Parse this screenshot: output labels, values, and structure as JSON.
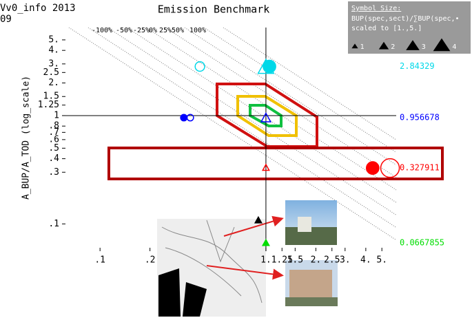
{
  "chart_data": {
    "type": "scatter",
    "title": "Emission Benchmark",
    "corner_text": [
      "Vv0_info 2013",
      "09"
    ],
    "y_label": "A_BUP/A_TOD (log_scale)",
    "x_log": true,
    "y_log": true,
    "xlim": [
      0.059,
      6.1
    ],
    "ylim": [
      0.056,
      6.5
    ],
    "xticks": [
      {
        "value": 0.1,
        "label": ".1"
      },
      {
        "value": 0.2,
        "label": ".2"
      },
      {
        "value": 1,
        "label": "1."
      },
      {
        "value": 1.25,
        "label": "1.25"
      },
      {
        "value": 1.5,
        "label": "1.5"
      },
      {
        "value": 2,
        "label": "2."
      },
      {
        "value": 2.5,
        "label": "2.5"
      },
      {
        "value": 3,
        "label": "3."
      },
      {
        "value": 4,
        "label": "4."
      },
      {
        "value": 5,
        "label": "5."
      }
    ],
    "yticks": [
      {
        "value": 5,
        "label": "5."
      },
      {
        "value": 4,
        "label": "4."
      },
      {
        "value": 3,
        "label": "3."
      },
      {
        "value": 2.5,
        "label": "2.5"
      },
      {
        "value": 2,
        "label": "2."
      },
      {
        "value": 1.5,
        "label": "1.5"
      },
      {
        "value": 1.25,
        "label": "1.25"
      },
      {
        "value": 1,
        "label": "1"
      },
      {
        "value": 0.8,
        "label": ".8"
      },
      {
        "value": 0.7,
        "label": ".7"
      },
      {
        "value": 0.6,
        "label": ".6"
      },
      {
        "value": 0.5,
        "label": ".5"
      },
      {
        "value": 0.4,
        "label": ".4"
      },
      {
        "value": 0.3,
        "label": ".3"
      },
      {
        "value": 0.1,
        "label": ".1"
      }
    ],
    "diagonal_labels": [
      "-100%",
      "-50%",
      "-25%",
      "0%",
      "25%",
      "50%",
      "100%"
    ],
    "reference_values": [
      {
        "value": 2.84329,
        "color": "#00d8e8"
      },
      {
        "value": 0.956678,
        "color": "#0000ff"
      },
      {
        "value": 0.327911,
        "color": "#ff0000"
      },
      {
        "value": 0.0667855,
        "color": "#00dd00"
      }
    ],
    "points": [
      {
        "x": 0.4,
        "y": 2.84,
        "color": "#00d8e8",
        "marker": "circle-open",
        "size": 2
      },
      {
        "x": 1.05,
        "y": 2.84,
        "color": "#00d8e8",
        "marker": "circle",
        "size": 3
      },
      {
        "x": 1.0,
        "y": 2.8,
        "color": "#00d8e8",
        "marker": "triangle-open",
        "size": 4
      },
      {
        "x": 0.32,
        "y": 0.957,
        "color": "#0000ff",
        "marker": "circle",
        "size": 1
      },
      {
        "x": 0.35,
        "y": 0.957,
        "color": "#0000ff",
        "marker": "circle-open",
        "size": 1
      },
      {
        "x": 1.0,
        "y": 0.95,
        "color": "#0000ff",
        "marker": "triangle-open",
        "size": 2
      },
      {
        "x": 4.4,
        "y": 0.328,
        "color": "#ff0000",
        "marker": "circle",
        "size": 3
      },
      {
        "x": 5.6,
        "y": 0.328,
        "color": "#ff0000",
        "marker": "circle-open",
        "size": 5
      },
      {
        "x": 1.0,
        "y": 0.33,
        "color": "#ff0000",
        "marker": "triangle-open",
        "size": 1
      },
      {
        "x": 0.9,
        "y": 0.108,
        "color": "#000000",
        "marker": "triangle",
        "size": 1
      },
      {
        "x": 1.0,
        "y": 0.0668,
        "color": "#00dd00",
        "marker": "triangle",
        "size": 1
      }
    ],
    "legend": {
      "title": "Symbol Size:",
      "lines": [
        "BUP(spec,sect)/∑BUP(spec,•",
        "scaled to [1.,5.]"
      ],
      "sizes": [
        1,
        2,
        3,
        4
      ]
    }
  }
}
